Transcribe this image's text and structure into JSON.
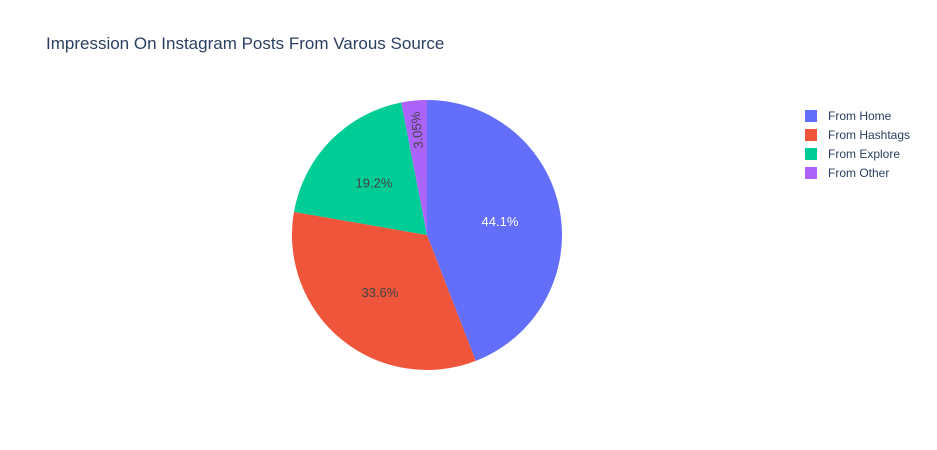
{
  "chart_data": {
    "type": "pie",
    "title": "Impression On Instagram Posts From Varous Source",
    "categories": [
      "From Home",
      "From Hashtags",
      "From Explore",
      "From Other"
    ],
    "percent_labels": [
      "44.1%",
      "33.6%",
      "19.2%",
      "3.05%"
    ],
    "values": [
      44.1,
      33.6,
      19.2,
      3.05
    ],
    "colors": [
      "#636efa",
      "#EF553B",
      "#00cc96",
      "#ab63fa"
    ],
    "label_colors": [
      "#ffffff",
      "#444444",
      "#444444",
      "#444444"
    ],
    "legend_position": "top-right",
    "direction": "clockwise",
    "start_angle": 90
  }
}
